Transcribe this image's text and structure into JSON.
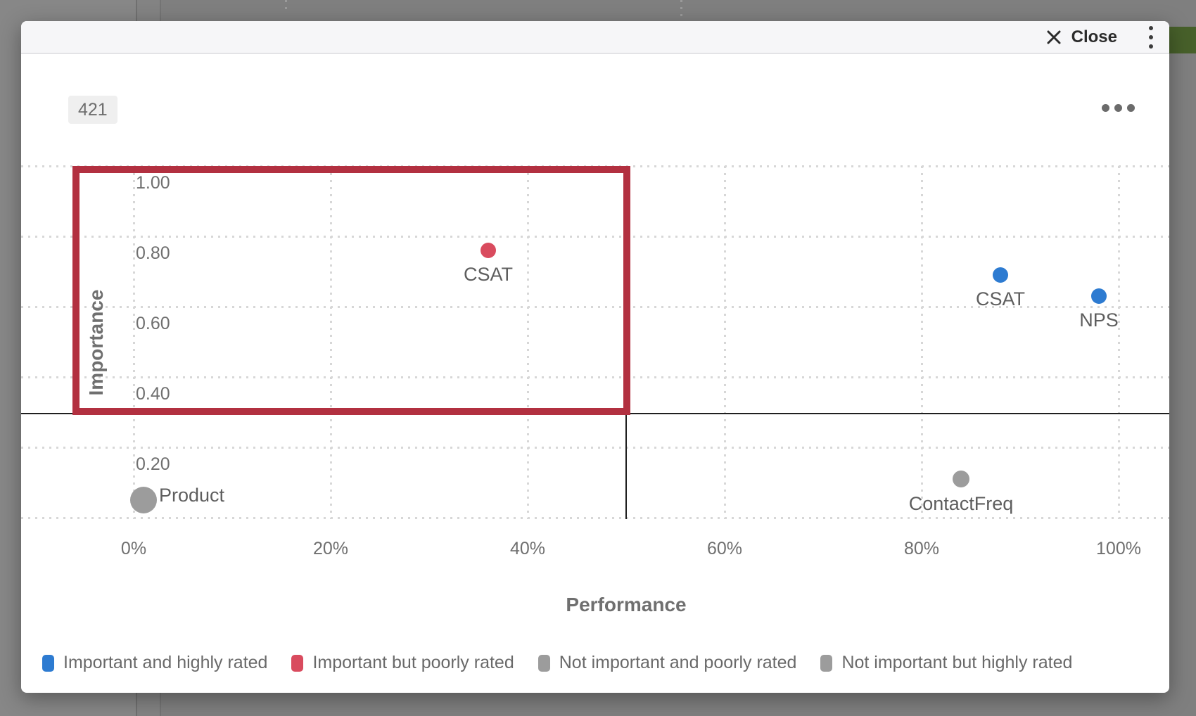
{
  "dialog": {
    "close_label": "Close",
    "count_badge": "421"
  },
  "chart_data": {
    "type": "scatter",
    "title": "",
    "xlabel": "Performance",
    "ylabel": "Importance",
    "xlim": [
      0,
      100
    ],
    "ylim": [
      0,
      1.0
    ],
    "grid": "dotted",
    "legend_position": "bottom",
    "x_ticks": [
      {
        "label": "0%",
        "value": 0
      },
      {
        "label": "20%",
        "value": 20
      },
      {
        "label": "40%",
        "value": 40
      },
      {
        "label": "60%",
        "value": 60
      },
      {
        "label": "80%",
        "value": 80
      },
      {
        "label": "100%",
        "value": 100
      }
    ],
    "y_ticks": [
      {
        "label": "1.00",
        "value": 1.0
      },
      {
        "label": "0.80",
        "value": 0.8
      },
      {
        "label": "0.60",
        "value": 0.6
      },
      {
        "label": "0.40",
        "value": 0.4
      },
      {
        "label": "0.20",
        "value": 0.2
      }
    ],
    "y_grid_values": [
      1.0,
      0.8,
      0.6,
      0.4,
      0.2,
      0.0
    ],
    "quadrant_divider": {
      "x": 50,
      "y": 0.3
    },
    "highlight_region": {
      "x0": -6.2,
      "x1": 50,
      "y0": 0.3,
      "y1": 1.0,
      "color": "#b23040"
    },
    "points": [
      {
        "label": "CSAT",
        "x": 36,
        "y": 0.76,
        "r": 11,
        "color": "#d94b5e",
        "category": "Important but poorly rated",
        "label_pos": "below"
      },
      {
        "label": "CSAT",
        "x": 88,
        "y": 0.69,
        "r": 11,
        "color": "#2d7bd1",
        "category": "Important and highly rated",
        "label_pos": "below"
      },
      {
        "label": "NPS",
        "x": 98,
        "y": 0.63,
        "r": 11,
        "color": "#2d7bd1",
        "category": "Important and highly rated",
        "label_pos": "below"
      },
      {
        "label": "Product",
        "x": 1,
        "y": 0.05,
        "r": 19,
        "color": "#9c9c9c",
        "category": "Not important and poorly rated",
        "label_pos": "right"
      },
      {
        "label": "ContactFreq",
        "x": 84,
        "y": 0.11,
        "r": 12,
        "color": "#9c9c9c",
        "category": "Not important and poorly rated",
        "label_pos": "below"
      }
    ],
    "legend": [
      {
        "label": "Important and highly rated",
        "color": "#2d7bd1"
      },
      {
        "label": "Important but poorly rated",
        "color": "#d94b5e"
      },
      {
        "label": "Not important and poorly rated",
        "color": "#9c9c9c"
      },
      {
        "label": "Not important but highly rated",
        "color": "#9c9c9c"
      }
    ]
  }
}
